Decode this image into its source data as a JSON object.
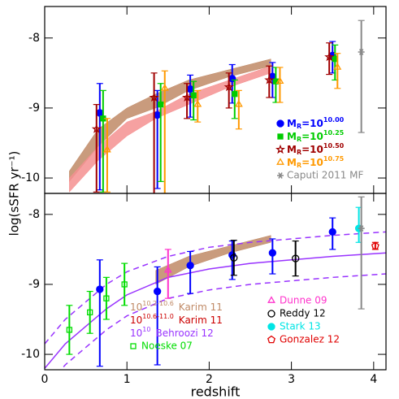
{
  "ylabel": "log(sSFR yr⁻¹)",
  "chart_data": [
    {
      "type": "errorbar",
      "xlim": [
        0,
        4.15
      ],
      "ylim": [
        -10.22,
        -7.55
      ],
      "yticks": [
        -10,
        -9,
        -8
      ],
      "xticks": [
        0,
        1,
        2,
        3,
        4
      ],
      "series": [
        {
          "kind": "band",
          "color": "#c08a66",
          "x": [
            0.3,
            0.65,
            1.0,
            1.35,
            1.75,
            2.25,
            2.75
          ],
          "low": [
            -10.05,
            -9.55,
            -9.15,
            -9.0,
            -8.75,
            -8.55,
            -8.4
          ],
          "high": [
            -9.9,
            -9.3,
            -9.0,
            -8.8,
            -8.6,
            -8.45,
            -8.3
          ]
        },
        {
          "kind": "band",
          "color": "#f59090",
          "x": [
            0.3,
            0.65,
            1.0,
            1.35,
            1.75,
            2.25,
            2.75
          ],
          "low": [
            -10.2,
            -9.75,
            -9.4,
            -9.15,
            -8.95,
            -8.7,
            -8.5
          ],
          "high": [
            -10.0,
            -9.55,
            -9.2,
            -9.05,
            -8.8,
            -8.6,
            -8.4
          ]
        },
        {
          "kind": "points",
          "marker": "circle",
          "color": "#0000ff",
          "label": "M",
          "sub": "R",
          "eq": "=10",
          "exp": "10.00",
          "x": [
            0.67,
            1.37,
            1.77,
            2.28,
            2.77,
            3.5
          ],
          "values": [
            -9.07,
            -9.1,
            -8.73,
            -8.58,
            -8.55,
            -8.25
          ],
          "yerr_low": [
            1.1,
            1.05,
            0.4,
            0.35,
            0.3,
            0.25
          ],
          "yerr_high": [
            0.42,
            0.35,
            0.2,
            0.2,
            0.2,
            0.2
          ]
        },
        {
          "kind": "points",
          "marker": "square",
          "color": "#00cc00",
          "label": "M",
          "sub": "R",
          "eq": "=10",
          "exp": "10.25",
          "x": [
            0.71,
            1.41,
            1.81,
            2.31,
            2.81,
            3.53
          ],
          "values": [
            -9.15,
            -8.95,
            -8.82,
            -8.8,
            -8.62,
            -8.3
          ],
          "yerr_low": [
            1.05,
            1.1,
            0.35,
            0.35,
            0.3,
            0.3
          ],
          "yerr_high": [
            0.4,
            0.3,
            0.2,
            0.2,
            0.2,
            0.2
          ]
        },
        {
          "kind": "points",
          "marker": "star",
          "color": "#a00000",
          "label": "M",
          "sub": "R",
          "eq": "=10",
          "exp": "10.50",
          "x": [
            0.63,
            1.33,
            1.73,
            2.24,
            2.73,
            3.46
          ],
          "values": [
            -9.3,
            -8.85,
            -8.85,
            -8.7,
            -8.6,
            -8.27
          ],
          "yerr_low": [
            0.9,
            1.4,
            0.3,
            0.3,
            0.25,
            0.25
          ],
          "yerr_high": [
            0.35,
            0.35,
            0.2,
            0.2,
            0.2,
            0.2
          ]
        },
        {
          "kind": "points",
          "marker": "triangle",
          "color": "#ff9900",
          "label": "M",
          "sub": "R",
          "eq": "=10",
          "exp": "10.75",
          "x": [
            0.76,
            1.46,
            1.86,
            2.36,
            2.86,
            3.56
          ],
          "values": [
            -9.6,
            -8.72,
            -8.95,
            -8.95,
            -8.62,
            -8.42
          ],
          "yerr_low": [
            0.6,
            1.5,
            0.25,
            0.35,
            0.3,
            0.3
          ],
          "yerr_high": [
            0.45,
            0.25,
            0.2,
            0.2,
            0.2,
            0.2
          ]
        },
        {
          "kind": "points",
          "marker": "asterisk",
          "color": "#888888",
          "name": "Caputi 2011 MF",
          "x": [
            3.85
          ],
          "values": [
            -8.2
          ],
          "yerr_low": [
            1.15
          ],
          "yerr_high": [
            0.45
          ]
        }
      ]
    },
    {
      "type": "errorbar",
      "xlabel": "redshift",
      "xlim": [
        0,
        4.15
      ],
      "ylim": [
        -10.22,
        -7.7
      ],
      "yticks": [
        -10,
        -9,
        -8
      ],
      "xticks": [
        0,
        1,
        2,
        3,
        4
      ],
      "series": [
        {
          "kind": "band",
          "color": "#c08a66",
          "name": "Karim 11",
          "base": "10",
          "exp": "10.2-10.6",
          "x": [
            1.35,
            1.75,
            2.25,
            2.75
          ],
          "low": [
            -9.0,
            -8.75,
            -8.55,
            -8.4
          ],
          "high": [
            -8.8,
            -8.6,
            -8.45,
            -8.3
          ]
        },
        {
          "kind": "band",
          "color": "#cc0000",
          "name": "Karim 11",
          "base": "10",
          "exp": "10.6-11.0",
          "x": [],
          "low": [],
          "high": []
        },
        {
          "kind": "line",
          "color": "#9933ff",
          "name": "Behroozi 12",
          "base": "10",
          "exp": "10",
          "x": [
            0,
            0.25,
            0.5,
            0.75,
            1,
            1.5,
            2,
            2.5,
            3,
            3.5,
            4.15
          ],
          "values": [
            -10.2,
            -9.85,
            -9.6,
            -9.35,
            -9.15,
            -8.9,
            -8.78,
            -8.7,
            -8.65,
            -8.6,
            -8.55
          ]
        },
        {
          "kind": "line",
          "dashed": true,
          "color": "#9933ff",
          "x": [
            0,
            0.25,
            0.5,
            0.75,
            1,
            1.5,
            2,
            2.5,
            3,
            3.5,
            4.15
          ],
          "values": [
            -9.85,
            -9.5,
            -9.25,
            -9.0,
            -8.82,
            -8.6,
            -8.47,
            -8.4,
            -8.35,
            -8.3,
            -8.25
          ]
        },
        {
          "kind": "line",
          "dashed": true,
          "color": "#9933ff",
          "x": [
            0,
            0.25,
            0.5,
            0.75,
            1,
            1.5,
            2,
            2.5,
            3,
            3.5,
            4.15
          ],
          "values": [
            -10.5,
            -10.15,
            -9.9,
            -9.65,
            -9.45,
            -9.2,
            -9.08,
            -9.0,
            -8.95,
            -8.9,
            -8.85
          ]
        },
        {
          "kind": "points",
          "marker": "osquare",
          "color": "#00dd00",
          "name": "Noeske 07",
          "x": [
            0.3,
            0.55,
            0.75,
            0.97
          ],
          "values": [
            -9.65,
            -9.4,
            -9.2,
            -9.0
          ],
          "yerr_low": [
            0.35,
            0.3,
            0.3,
            0.3
          ],
          "yerr_high": [
            0.35,
            0.3,
            0.3,
            0.3
          ]
        },
        {
          "kind": "points",
          "marker": "circle",
          "color": "#0000ff",
          "x": [
            0.67,
            1.37,
            1.77,
            2.28,
            2.77,
            3.5
          ],
          "values": [
            -9.07,
            -9.1,
            -8.73,
            -8.58,
            -8.55,
            -8.25
          ],
          "yerr_low": [
            1.1,
            1.05,
            0.4,
            0.35,
            0.3,
            0.25
          ],
          "yerr_high": [
            0.42,
            0.35,
            0.2,
            0.2,
            0.2,
            0.2
          ]
        },
        {
          "kind": "points",
          "marker": "triangle",
          "color": "#ff33cc",
          "name": "Dunne 09",
          "x": [
            1.5
          ],
          "values": [
            -8.8
          ],
          "yerr_low": [
            0.4
          ],
          "yerr_high": [
            0.3
          ]
        },
        {
          "kind": "points",
          "marker": "ocircle",
          "color": "#000000",
          "name": "Reddy 12",
          "x": [
            2.3,
            3.05
          ],
          "values": [
            -8.62,
            -8.63
          ],
          "yerr_low": [
            0.25,
            0.25
          ],
          "yerr_high": [
            0.25,
            0.25
          ]
        },
        {
          "kind": "points",
          "marker": "circle",
          "color": "#00e5e5",
          "name": "Stark 13",
          "x": [
            3.82
          ],
          "values": [
            -8.2
          ],
          "yerr_low": [
            0.2
          ],
          "yerr_high": [
            0.3
          ]
        },
        {
          "kind": "points",
          "marker": "pentagon",
          "color": "#e00000",
          "name": "Gonzalez 12",
          "x": [
            4.02
          ],
          "values": [
            -8.45
          ],
          "yerr_low": [
            0.05
          ],
          "yerr_high": [
            0.05
          ]
        },
        {
          "kind": "points",
          "marker": "asterisk",
          "color": "#888888",
          "x": [
            3.85
          ],
          "values": [
            -8.2
          ],
          "yerr_low": [
            1.15
          ],
          "yerr_high": [
            0.45
          ]
        }
      ]
    }
  ]
}
